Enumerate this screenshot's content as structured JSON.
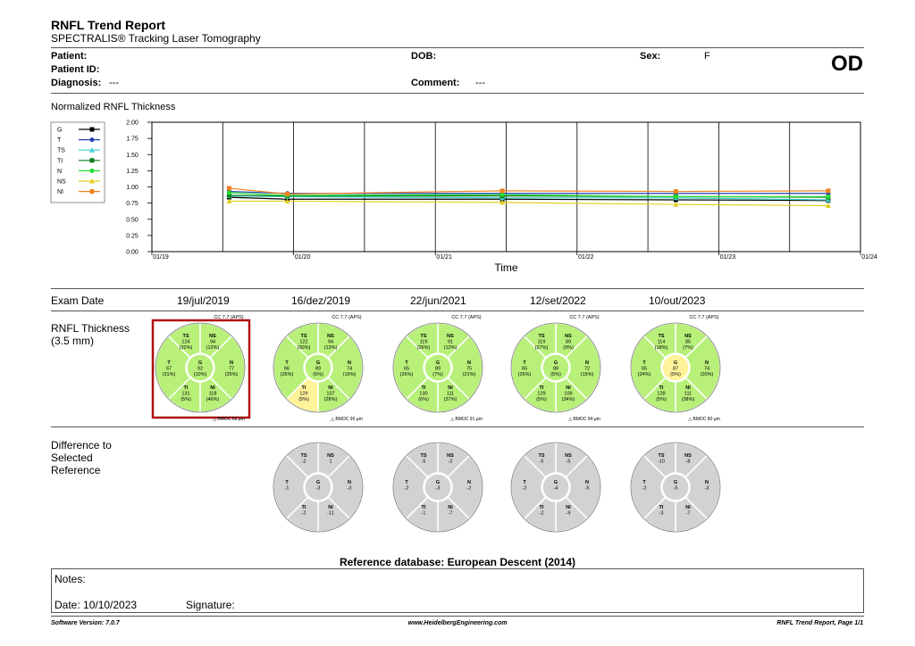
{
  "header": {
    "title": "RNFL Trend Report",
    "subtitle": "SPECTRALIS® Tracking Laser Tomography",
    "patient_label": "Patient:",
    "patient_id_label": "Patient ID:",
    "diagnosis_label": "Diagnosis:",
    "diagnosis_value": "---",
    "dob_label": "DOB:",
    "comment_label": "Comment:",
    "comment_value": "---",
    "sex_label": "Sex:",
    "sex_value": "F",
    "eye": "OD"
  },
  "chart_section_title": "Normalized RNFL Thickness",
  "chart_data": {
    "type": "line",
    "xlabel": "Time",
    "x_ticks": [
      "01/19",
      "01/20",
      "01/21",
      "01/22",
      "01/23",
      "01/24"
    ],
    "y_ticks": [
      "0.00",
      "0.25",
      "0.50",
      "0.75",
      "1.00",
      "1.25",
      "1.50",
      "1.75",
      "2.00"
    ],
    "ylim": [
      0,
      2
    ],
    "x": [
      "2019-07-19",
      "2019-12-16",
      "2021-06-22",
      "2022-09-12",
      "2023-10-10"
    ],
    "series": [
      {
        "name": "G",
        "color": "#000000",
        "marker": "square",
        "values": [
          0.84,
          0.81,
          0.81,
          0.8,
          0.79
        ]
      },
      {
        "name": "T",
        "color": "#1f3fb0",
        "marker": "circle",
        "values": [
          0.93,
          0.9,
          0.9,
          0.9,
          0.9
        ]
      },
      {
        "name": "TS",
        "color": "#3fcfcf",
        "marker": "triangle",
        "values": [
          0.86,
          0.85,
          0.83,
          0.83,
          0.8
        ]
      },
      {
        "name": "TI",
        "color": "#0a7a1a",
        "marker": "square",
        "values": [
          0.87,
          0.86,
          0.86,
          0.85,
          0.84
        ]
      },
      {
        "name": "N",
        "color": "#22dd33",
        "marker": "circle",
        "values": [
          0.91,
          0.87,
          0.88,
          0.85,
          0.85
        ]
      },
      {
        "name": "NS",
        "color": "#e0d020",
        "marker": "triangle",
        "values": [
          0.78,
          0.78,
          0.76,
          0.73,
          0.71
        ]
      },
      {
        "name": "NI",
        "color": "#f08020",
        "marker": "square",
        "values": [
          0.98,
          0.89,
          0.94,
          0.93,
          0.94
        ]
      }
    ],
    "legend": "left"
  },
  "exam_date_label": "Exam Date",
  "exam_dates": [
    "19/jul/2019",
    "16/dez/2019",
    "22/jun/2021",
    "12/set/2022",
    "10/out/2023"
  ],
  "rnfl_label_1": "RNFL Thickness",
  "rnfl_label_2": "(3.5 mm)",
  "thickness_circles": [
    {
      "cc": "CC 7.7 (APS)",
      "bmoc": "BMOC 68 µm",
      "selected": true,
      "TS": [
        "TS",
        "124",
        "(32%)"
      ],
      "NS": [
        "NS",
        "94",
        "(12%)"
      ],
      "T": [
        "T",
        "67",
        "(31%)"
      ],
      "G": [
        "G",
        "92",
        "(10%)"
      ],
      "N": [
        "N",
        "77",
        "(25%)"
      ],
      "TI": [
        "TI",
        "131",
        "(5%)"
      ],
      "NI": [
        "NI",
        "118",
        "(46%)"
      ],
      "yellow": []
    },
    {
      "cc": "CC 7.7 (APS)",
      "bmoc": "BMOC 90 µm",
      "selected": false,
      "TS": [
        "TS",
        "122",
        "(30%)"
      ],
      "NS": [
        "NS",
        "94",
        "(13%)"
      ],
      "T": [
        "T",
        "66",
        "(26%)"
      ],
      "G": [
        "G",
        "89",
        "(6%)"
      ],
      "N": [
        "N",
        "74",
        "(19%)"
      ],
      "TI": [
        "TI",
        "129",
        "(5%)"
      ],
      "NI": [
        "NI",
        "107",
        "(28%)"
      ],
      "yellow": [
        "TI"
      ]
    },
    {
      "cc": "CC 7.7 (APS)",
      "bmoc": "BMOC 91 µm",
      "selected": false,
      "TS": [
        "TS",
        "119",
        "(26%)"
      ],
      "NS": [
        "NS",
        "91",
        "(12%)"
      ],
      "T": [
        "T",
        "65",
        "(26%)"
      ],
      "G": [
        "G",
        "89",
        "(7%)"
      ],
      "N": [
        "N",
        "75",
        "(21%)"
      ],
      "TI": [
        "TI",
        "130",
        "(6%)"
      ],
      "NI": [
        "NI",
        "111",
        "(37%)"
      ],
      "yellow": []
    },
    {
      "cc": "CC 7.7 (APS)",
      "bmoc": "BMOC 94 µm",
      "selected": false,
      "TS": [
        "TS",
        "119",
        "(27%)"
      ],
      "NS": [
        "NS",
        "89",
        "(9%)"
      ],
      "T": [
        "T",
        "65",
        "(26%)"
      ],
      "G": [
        "G",
        "88",
        "(5%)"
      ],
      "N": [
        "N",
        "72",
        "(15%)"
      ],
      "TI": [
        "TI",
        "129",
        "(5%)"
      ],
      "NI": [
        "NI",
        "109",
        "(34%)"
      ],
      "yellow": []
    },
    {
      "cc": "CC 7.7 (APS)",
      "bmoc": "BMOC 80 µm",
      "selected": false,
      "TS": [
        "TS",
        "114",
        "(18%)"
      ],
      "NS": [
        "NS",
        "85",
        "(7%)"
      ],
      "T": [
        "T",
        "65",
        "(24%)"
      ],
      "G": [
        "G",
        "87",
        "(5%)"
      ],
      "N": [
        "N",
        "74",
        "(20%)"
      ],
      "TI": [
        "TI",
        "128",
        "(5%)"
      ],
      "NI": [
        "NI",
        "111",
        "(38%)"
      ],
      "yellow": [
        "G"
      ]
    }
  ],
  "diff_label_1": "Difference to",
  "diff_label_2": "Selected",
  "diff_label_3": "Reference",
  "diff_circles": [
    {
      "TS": [
        "TS",
        "-2"
      ],
      "NS": [
        "NS",
        "1"
      ],
      "T": [
        "T",
        "-1"
      ],
      "G": [
        "G",
        "-3"
      ],
      "N": [
        "N",
        "-3"
      ],
      "TI": [
        "TI",
        "-2"
      ],
      "NI": [
        "NI",
        "-11"
      ]
    },
    {
      "TS": [
        "TS",
        "-5"
      ],
      "NS": [
        "NS",
        "-2"
      ],
      "T": [
        "T",
        "-2"
      ],
      "G": [
        "G",
        "-3"
      ],
      "N": [
        "N",
        "-2"
      ],
      "TI": [
        "TI",
        "-1"
      ],
      "NI": [
        "NI",
        "-7"
      ]
    },
    {
      "TS": [
        "TS",
        "-5"
      ],
      "NS": [
        "NS",
        "-5"
      ],
      "T": [
        "T",
        "-2"
      ],
      "G": [
        "G",
        "-4"
      ],
      "N": [
        "N",
        "-5"
      ],
      "TI": [
        "TI",
        "-2"
      ],
      "NI": [
        "NI",
        "-9"
      ]
    },
    {
      "TS": [
        "TS",
        "-10"
      ],
      "NS": [
        "NS",
        "-8"
      ],
      "T": [
        "T",
        "-2"
      ],
      "G": [
        "G",
        "-5"
      ],
      "N": [
        "N",
        "-3"
      ],
      "TI": [
        "TI",
        "-3"
      ],
      "NI": [
        "NI",
        "-7"
      ]
    }
  ],
  "reference_db": "Reference database: European Descent (2014)",
  "notes_label": "Notes:",
  "date_label": "Date: 10/10/2023",
  "signature_label": "Signature:",
  "footer": {
    "software": "Software Version: 7.0.7",
    "website": "www.HeidelbergEngineering.com",
    "page": "RNFL Trend Report, Page 1/1"
  },
  "colors": {
    "green": "#b8f07a",
    "yellow": "#fff39a",
    "gray": "#d2d2d2",
    "selected_border": "#b01010"
  }
}
